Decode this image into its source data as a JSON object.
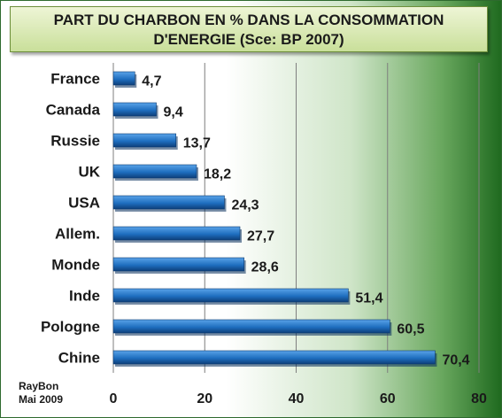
{
  "title_lines": [
    "PART DU CHARBON EN % DANS LA CONSOMMATION",
    "D'ENERGIE (Sce: BP 2007)"
  ],
  "author": {
    "name": "RayBon",
    "date": "Mai 2009"
  },
  "colors": {
    "bar": "#1f6fc0",
    "bar_dark": "#0d3f7a",
    "bar_light": "#5aa3e8",
    "grid": "#7f7f7f"
  },
  "chart_data": {
    "type": "bar",
    "orientation": "horizontal",
    "title": "PART DU CHARBON EN % DANS LA CONSOMMATION D'ENERGIE (Sce: BP 2007)",
    "categories": [
      "France",
      "Canada",
      "Russie",
      "UK",
      "USA",
      "Allem.",
      "Monde",
      "Inde",
      "Pologne",
      "Chine"
    ],
    "values": [
      4.7,
      9.4,
      13.7,
      18.2,
      24.3,
      27.7,
      28.6,
      51.4,
      60.5,
      70.4
    ],
    "value_labels": [
      "4,7",
      "9,4",
      "13,7",
      "18,2",
      "24,3",
      "27,7",
      "28,6",
      "51,4",
      "60,5",
      "70,4"
    ],
    "xlim": [
      0,
      80
    ],
    "xticks": [
      0,
      20,
      40,
      60,
      80
    ],
    "xlabel": "",
    "ylabel": "",
    "grid": true,
    "legend": "none"
  }
}
